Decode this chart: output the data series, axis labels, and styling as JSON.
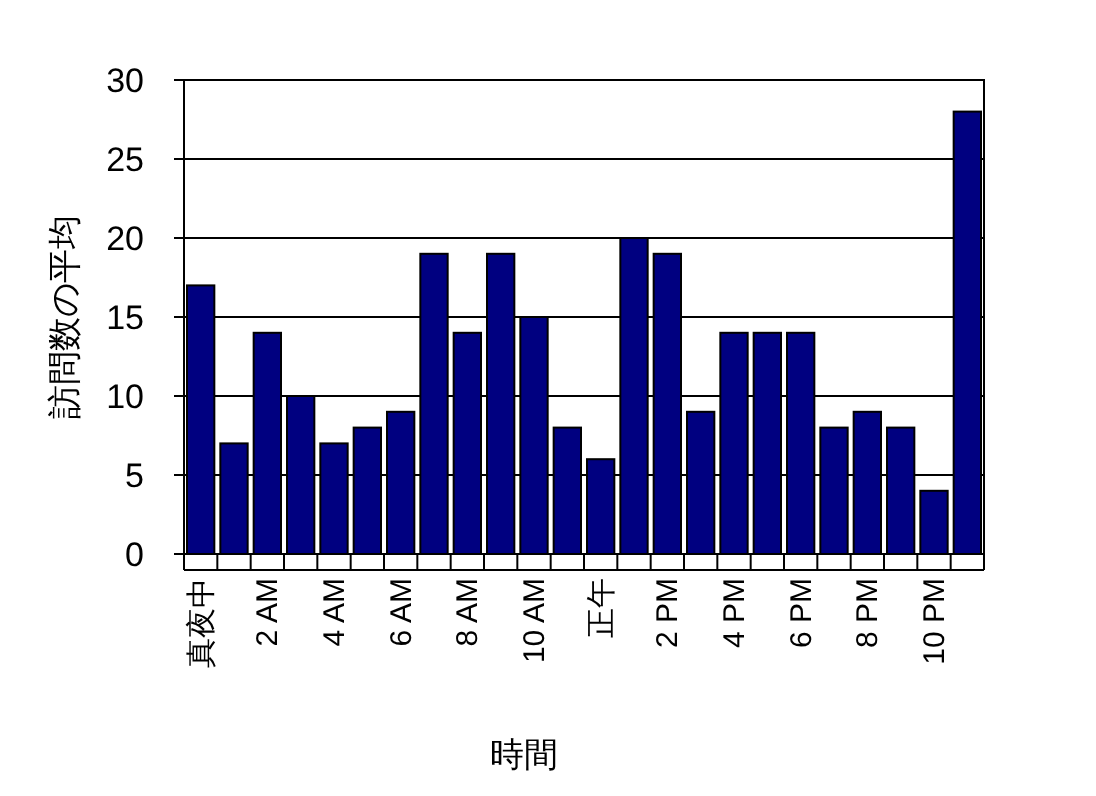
{
  "chart_data": {
    "type": "bar",
    "xlabel": "時間",
    "ylabel": "訪問数の平均",
    "categories": [
      "真夜中",
      null,
      "2 AM",
      null,
      "4 AM",
      null,
      "6 AM",
      null,
      "8 AM",
      null,
      "10 AM",
      null,
      "正午",
      null,
      "2 PM",
      null,
      "4 PM",
      null,
      "6 PM",
      null,
      "8 PM",
      null,
      "10 PM",
      null
    ],
    "values": [
      17,
      7,
      14,
      10,
      7,
      8,
      9,
      19,
      14,
      19,
      15,
      8,
      6,
      20,
      19,
      9,
      14,
      14,
      14,
      8,
      9,
      8,
      4,
      28
    ],
    "color": "#000080",
    "ylim": [
      0,
      30
    ],
    "yticks": [
      0,
      5,
      10,
      15,
      20,
      25,
      30
    ],
    "grid": "y"
  }
}
